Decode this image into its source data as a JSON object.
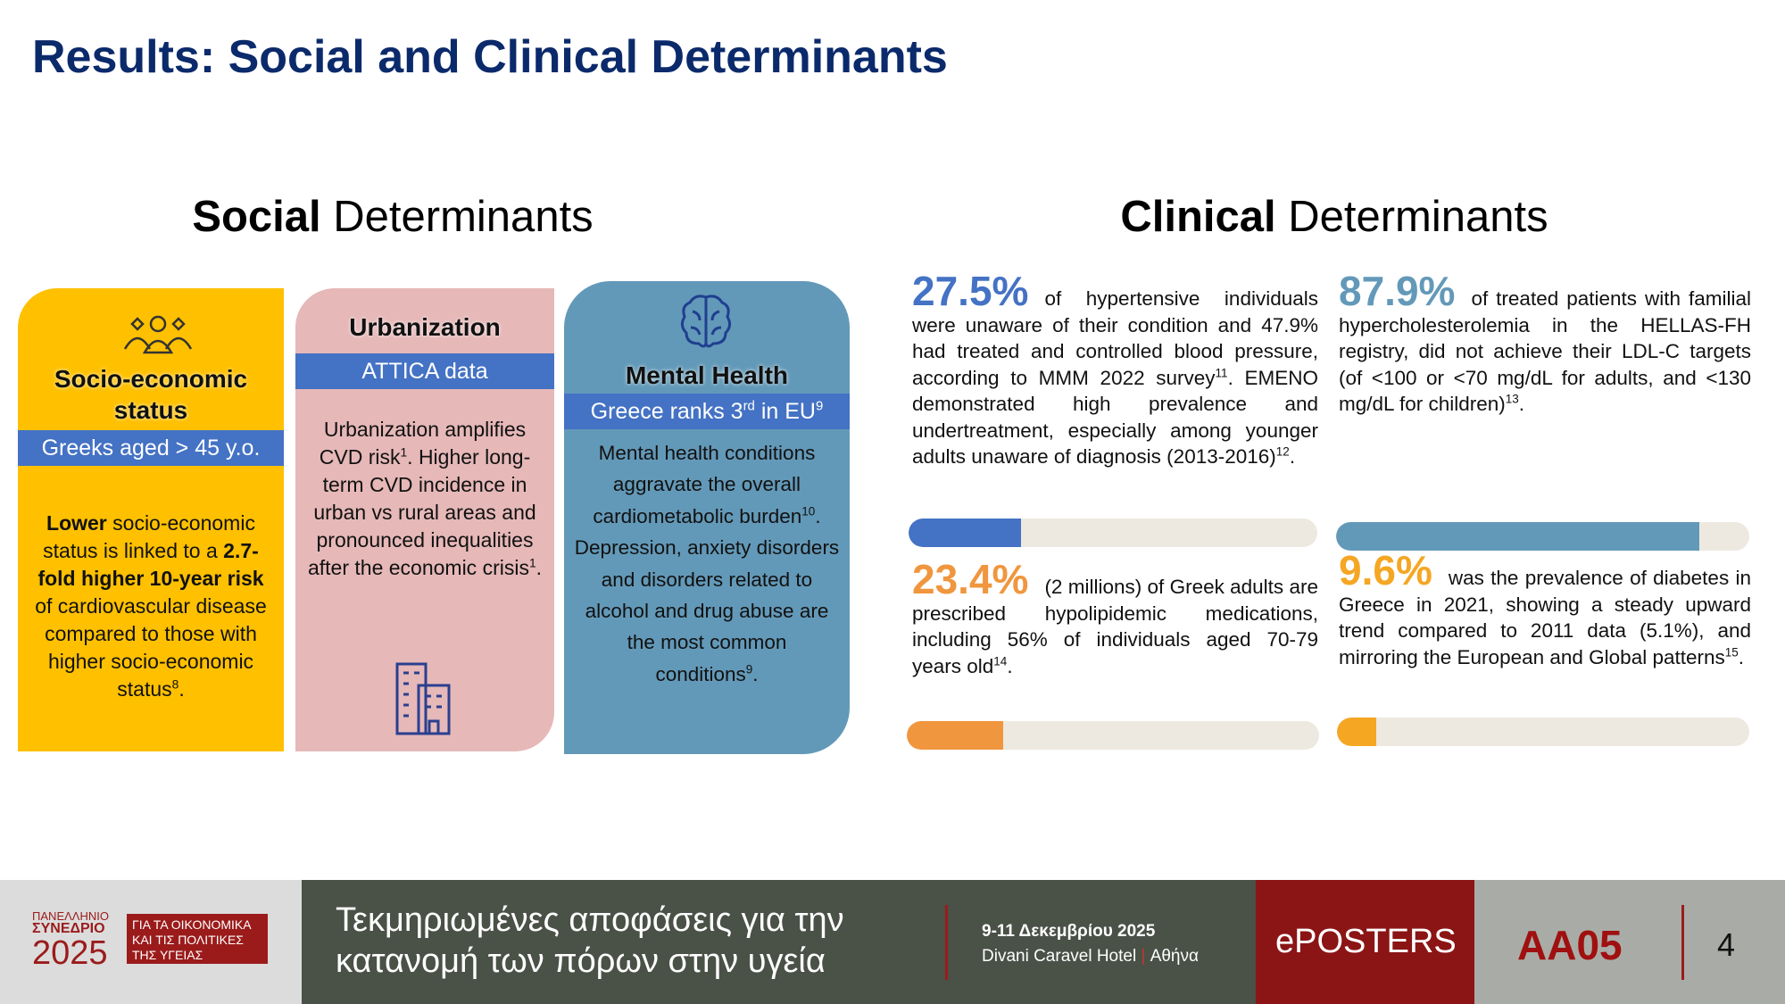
{
  "header": {
    "title": "Results: Social and Clinical Determinants"
  },
  "social": {
    "heading": [
      {
        "text": "Social",
        "style": "bold"
      },
      {
        "text": " Determinants"
      }
    ],
    "cards": [
      {
        "title": "Socio-economic status",
        "band": [
          {
            "text": "Greeks aged > 45 y.o."
          }
        ],
        "body": [
          {
            "text": "Lower",
            "style": "bold"
          },
          {
            "text": " socio-economic status is linked to a "
          },
          {
            "text": "2.7-fold higher 10-year risk",
            "style": "bold"
          },
          {
            "text": " of cardiovascular disease compared to those with higher socio-economic status"
          },
          {
            "text": "8",
            "style": "sup"
          },
          {
            "text": "."
          }
        ]
      },
      {
        "title": "Urbanization",
        "band": [
          {
            "text": "ATTICA data"
          }
        ],
        "body": [
          {
            "text": "Urbanization amplifies CVD risk"
          },
          {
            "text": "1",
            "style": "sup"
          },
          {
            "text": ". Higher long-term CVD incidence in urban vs rural areas and pronounced inequalities after the economic crisis"
          },
          {
            "text": "1",
            "style": "sup"
          },
          {
            "text": "."
          }
        ]
      },
      {
        "title": "Mental Health",
        "band": [
          {
            "text": "Greece ranks 3"
          },
          {
            "text": "rd",
            "style": "sup"
          },
          {
            "text": " in EU"
          },
          {
            "text": "9",
            "style": "sup"
          }
        ],
        "body": [
          {
            "text": "Mental health conditions aggravate the overall cardiometabolic burden"
          },
          {
            "text": "10",
            "style": "sup"
          },
          {
            "text": ". Depression, anxiety disorders and disorders related to alcohol and drug abuse are the most common conditions"
          },
          {
            "text": "9",
            "style": "sup"
          },
          {
            "text": "."
          }
        ]
      }
    ]
  },
  "clinical": {
    "heading": [
      {
        "text": "Clinical",
        "style": "bold"
      },
      {
        "text": " Determinants"
      }
    ],
    "items": [
      {
        "value": 27.5,
        "label": "27.5%",
        "color": "#4472c4",
        "text": [
          {
            "text": "of hypertensive individuals were unaware of their condition and 47.9% had treated and controlled blood pressure, according to MMM 2022 survey"
          },
          {
            "text": "11",
            "style": "sup"
          },
          {
            "text": ". EMENO demonstrated high prevalence and undertreatment, especially among younger adults unaware of diagnosis (2013-2016)"
          },
          {
            "text": "12",
            "style": "sup"
          },
          {
            "text": "."
          }
        ]
      },
      {
        "value": 87.9,
        "label": "87.9%",
        "color": "#6399b8",
        "text": [
          {
            "text": "of treated patients with familial hypercholesterolemia in the HELLAS-FH registry, did not achieve their LDL-C targets (of <100 or <70 mg/dL for adults, and <130 mg/dL for children)"
          },
          {
            "text": "13",
            "style": "sup"
          },
          {
            "text": "."
          }
        ]
      },
      {
        "value": 23.4,
        "label": "23.4%",
        "color": "#f0963e",
        "text": [
          {
            "text": "(2 millions) of Greek adults are prescribed hypolipidemic medications, including 56% of individuals aged 70-79 years old"
          },
          {
            "text": "14",
            "style": "sup"
          },
          {
            "text": "."
          }
        ]
      },
      {
        "value": 9.6,
        "label": "9.6%",
        "color": "#f5a623",
        "text": [
          {
            "text": "was the prevalence of diabetes in Greece in 2021, showing a steady upward trend compared to 2011 data (5.1%), and mirroring the European and Global patterns"
          },
          {
            "text": "15",
            "style": "sup"
          },
          {
            "text": "."
          }
        ]
      }
    ]
  },
  "footer": {
    "congress": [
      "ΠΑΝΕΛΛΗΝΙΟ",
      "ΣΥΝΕΔΡΙΟ",
      "2025"
    ],
    "theme": [
      "ΓΙΑ ΤΑ ΟΙΚΟΝΟΜΙΚΑ",
      "ΚΑΙ ΤΙΣ ΠΟΛΙΤΙΚΕΣ",
      "ΤΗΣ ΥΓΕΙΑΣ"
    ],
    "tagline": [
      "Τεκμηριωμένες αποφάσεις για την",
      "κατανομή των πόρων στην υγεία"
    ],
    "date": "9-11 Δεκεμβρίου 2025",
    "venue": "Divani Caravel Hotel",
    "city": "Αθήνα",
    "eposters": "ePOSTERS",
    "code": "AA05",
    "page": "4"
  }
}
